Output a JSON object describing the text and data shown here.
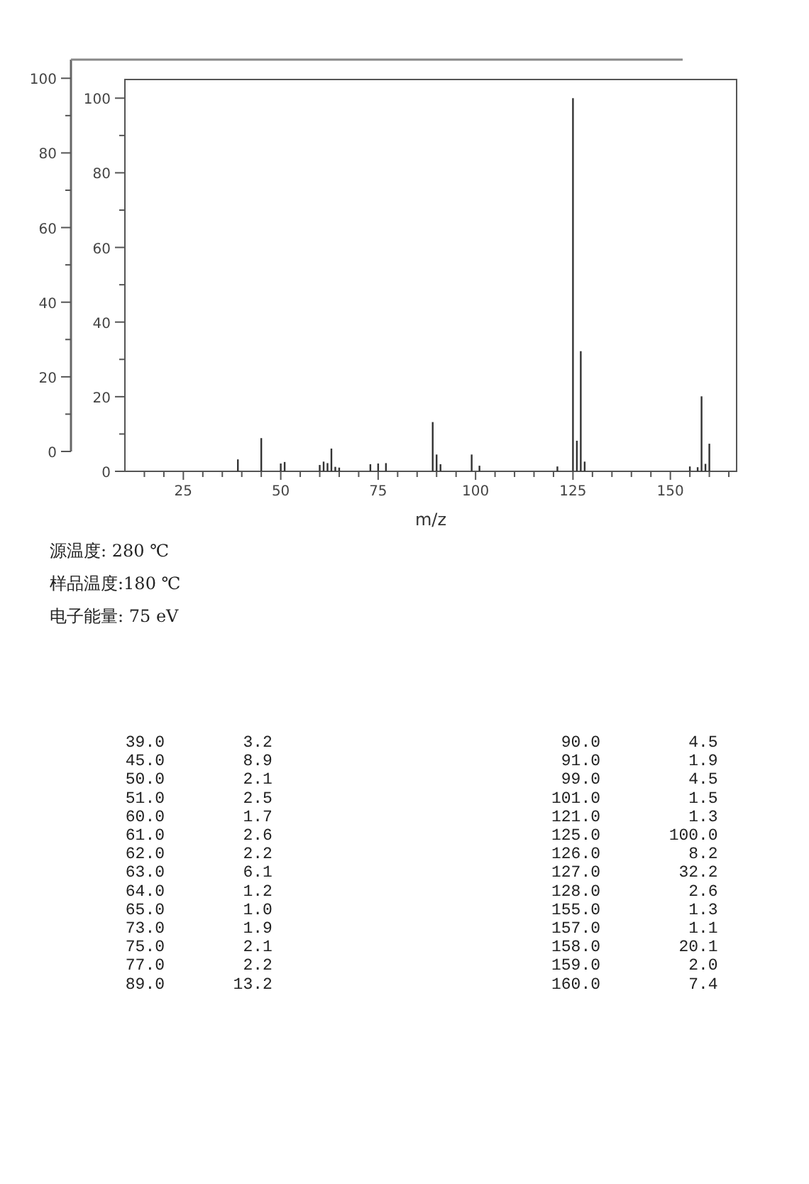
{
  "chart_data": [
    {
      "type": "bar",
      "xlabel": "m/z",
      "x": [
        39,
        45,
        50,
        51,
        60,
        61,
        62,
        63,
        64,
        65,
        73,
        75,
        77,
        89,
        90,
        91,
        99,
        101,
        121,
        125,
        126,
        127,
        128,
        155,
        157,
        158,
        159,
        160
      ],
      "values": [
        3.2,
        8.9,
        2.1,
        2.5,
        1.7,
        2.6,
        2.2,
        6.1,
        1.2,
        1.0,
        1.9,
        2.1,
        2.2,
        13.2,
        4.5,
        1.9,
        4.5,
        1.5,
        1.3,
        100.0,
        8.2,
        32.2,
        2.6,
        1.3,
        1.1,
        20.1,
        2.0,
        7.4
      ],
      "color": "#333333",
      "xlim": [
        10,
        167
      ],
      "xticks": [
        {
          "value": 15,
          "label": null
        },
        {
          "value": 20,
          "label": null
        },
        25,
        {
          "value": 30,
          "label": null
        },
        {
          "value": 35,
          "label": null
        },
        {
          "value": 40,
          "label": null
        },
        {
          "value": 45,
          "label": null
        },
        50,
        {
          "value": 55,
          "label": null
        },
        {
          "value": 60,
          "label": null
        },
        {
          "value": 65,
          "label": null
        },
        {
          "value": 70,
          "label": null
        },
        75,
        {
          "value": 80,
          "label": null
        },
        {
          "value": 85,
          "label": null
        },
        {
          "value": 90,
          "label": null
        },
        {
          "value": 95,
          "label": null
        },
        100,
        {
          "value": 105,
          "label": null
        },
        {
          "value": 110,
          "label": null
        },
        {
          "value": 115,
          "label": null
        },
        {
          "value": 120,
          "label": null
        },
        125,
        {
          "value": 130,
          "label": null
        },
        {
          "value": 135,
          "label": null
        },
        {
          "value": 140,
          "label": null
        },
        {
          "value": 145,
          "label": null
        },
        150,
        {
          "value": 155,
          "label": null
        },
        {
          "value": 160,
          "label": null
        },
        {
          "value": 165,
          "label": null
        }
      ],
      "ylim": [
        0,
        105
      ],
      "yticks": [
        0,
        {
          "value": 10,
          "label": null
        },
        20,
        {
          "value": 30,
          "label": null
        },
        40,
        {
          "value": 50,
          "label": null
        },
        60,
        {
          "value": 70,
          "label": null
        },
        80,
        {
          "value": 90,
          "label": null
        },
        100
      ],
      "y2lim": [
        0,
        105
      ],
      "y2ticks": [
        0,
        {
          "value": 10,
          "label": null
        },
        20,
        {
          "value": 30,
          "label": null
        },
        40,
        {
          "value": 50,
          "label": null
        },
        60,
        {
          "value": 70,
          "label": null
        },
        80,
        {
          "value": 90,
          "label": null
        },
        100
      ],
      "annotations": [
        "源温度: 280 ℃",
        "样品温度:180 ℃",
        "电子能量: 75 eV"
      ]
    },
    {
      "type": "other",
      "annotations": [
        "39.0 3.2",
        "90.0 4.5",
        "45.0 8.9",
        "91.0 1.9",
        "50.0 2.1",
        "99.0 4.5",
        "51.0 2.5",
        "101.0 1.5",
        "60.0 1.7",
        "121.0 1.3",
        "61.0 2.6",
        "125.0 100.0",
        "62.0 2.2",
        "126.0 8.2",
        "63.0 6.1",
        "127.0 32.2",
        "64.0 1.2",
        "128.0 2.6",
        "65.0 1.0",
        "155.0 1.3",
        "73.0 1.9",
        "157.0 1.1",
        "75.0 2.1",
        "158.0 20.1",
        "77.0 2.2",
        "159.0 2.0",
        "89.0 13.2",
        "160.0 7.4"
      ]
    }
  ]
}
